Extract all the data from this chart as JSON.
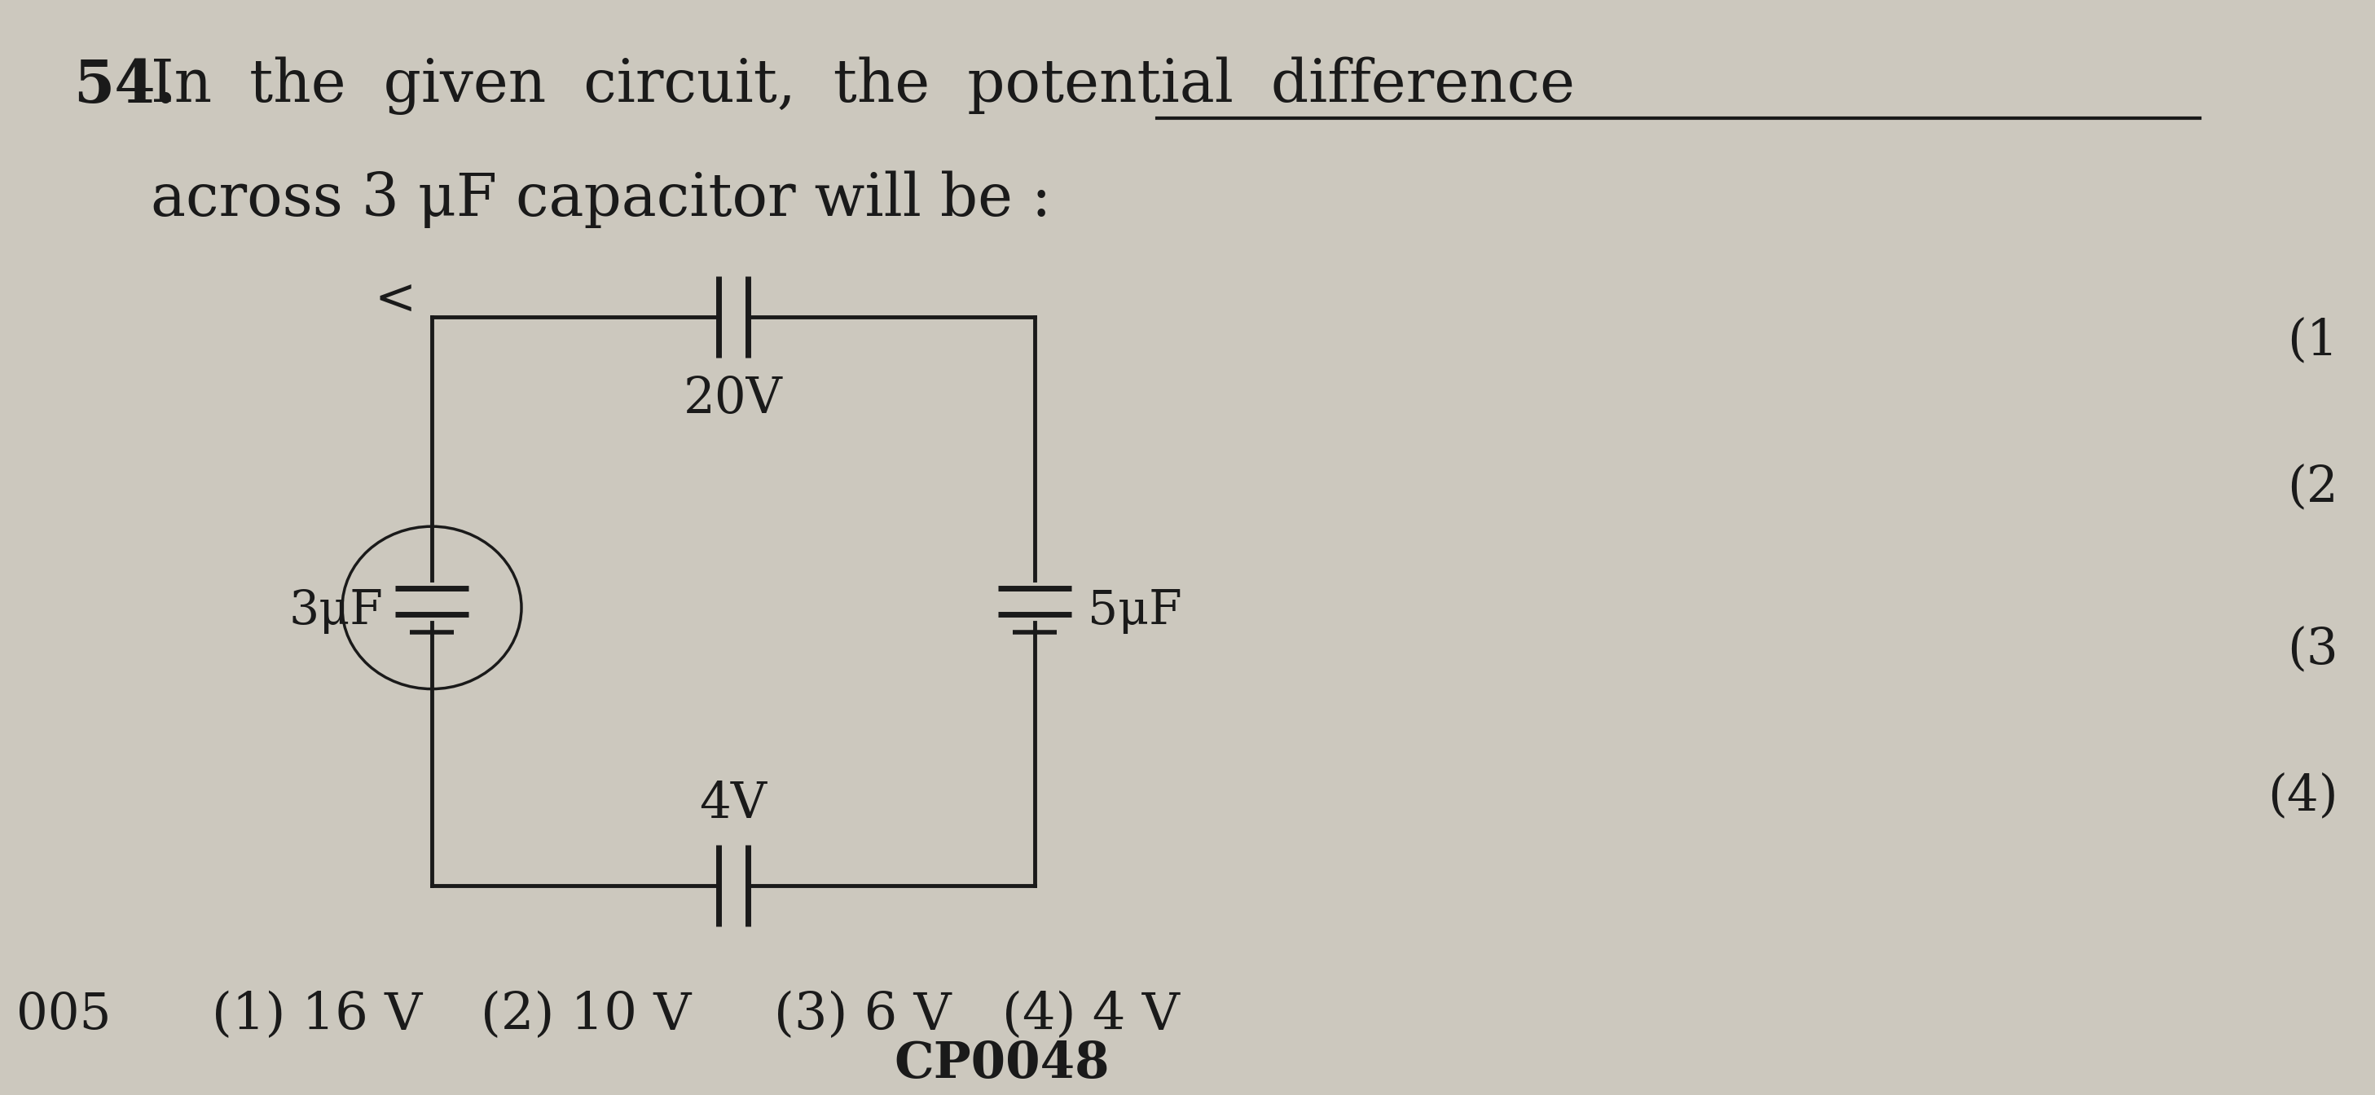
{
  "bg_color": "#ccc8be",
  "text_color": "#1a1a1a",
  "line_color": "#1a1a1a",
  "title_number": "54.",
  "title_line1": "In  the  given  circuit,  the  potential  difference",
  "title_line2": "across 3 μF capacitor will be :",
  "underline_text": "potential  difference",
  "circuit": {
    "top_cap_label": "20V",
    "bottom_cap_label": "4V",
    "left_cap_label": "3μF",
    "right_cap_label": "5μF"
  },
  "options": [
    "(1) 16 V",
    "(2) 10 V",
    "(3) 6 V",
    "(4) 4 V"
  ],
  "code": "CP0048",
  "question_num_left": "005",
  "right_margin": [
    "(1",
    "(2",
    "(3",
    "(4)"
  ]
}
